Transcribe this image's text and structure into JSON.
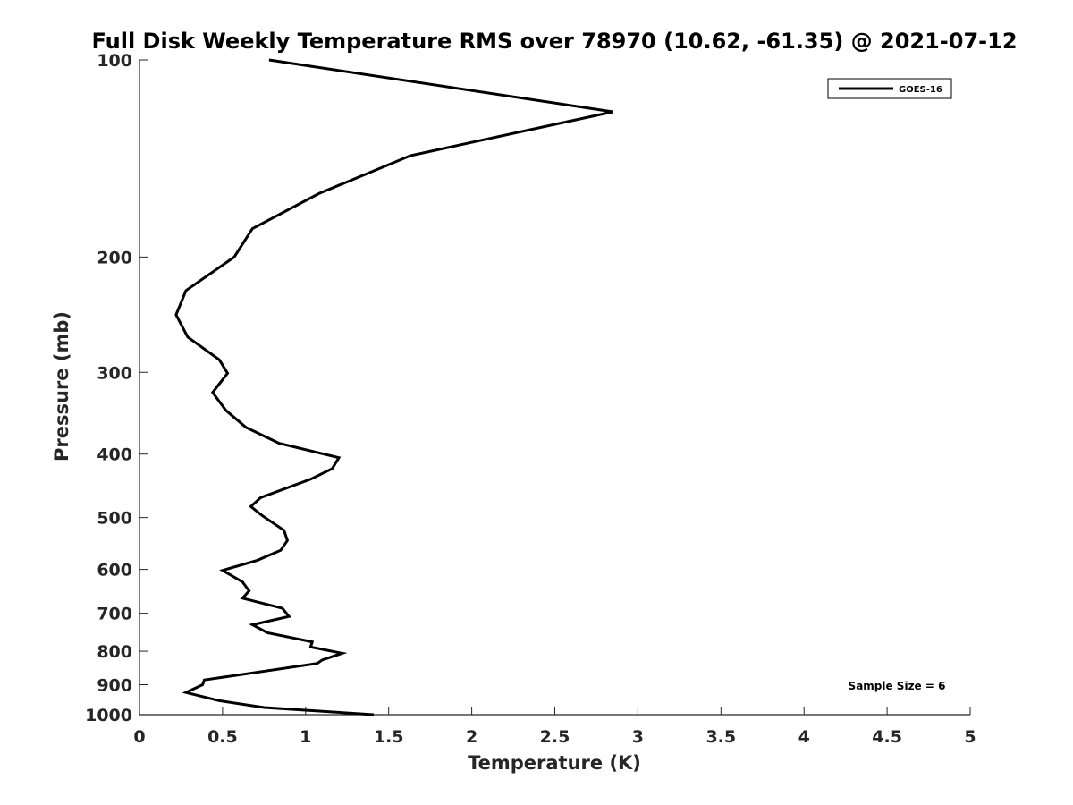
{
  "chart_data": {
    "type": "line",
    "title": "Full Disk Weekly Temperature RMS over 78970 (10.62, -61.35) @ 2021-07-12",
    "xlabel": "Temperature (K)",
    "ylabel": "Pressure (mb)",
    "xlim": [
      0,
      5
    ],
    "ylim": [
      100,
      1000
    ],
    "y_scale": "log",
    "y_reversed": true,
    "grid": false,
    "legend_position": "top-right",
    "x_ticks": [
      0,
      0.5,
      1,
      1.5,
      2,
      2.5,
      3,
      3.5,
      4,
      4.5,
      5
    ],
    "x_tick_labels": [
      "0",
      "0.5",
      "1",
      "1.5",
      "2",
      "2.5",
      "3",
      "3.5",
      "4",
      "4.5",
      "5"
    ],
    "y_ticks": [
      100,
      200,
      300,
      400,
      500,
      600,
      700,
      800,
      900,
      1000
    ],
    "y_tick_labels": [
      "100",
      "200",
      "300",
      "400",
      "500",
      "600",
      "700",
      "800",
      "900",
      "1000"
    ],
    "series": [
      {
        "name": "GOES-16",
        "color": "#000000",
        "points": [
          [
            0.78,
            100
          ],
          [
            2.85,
            120
          ],
          [
            1.63,
            140
          ],
          [
            1.08,
            160
          ],
          [
            0.68,
            181
          ],
          [
            0.57,
            200
          ],
          [
            0.28,
            225
          ],
          [
            0.22,
            245
          ],
          [
            0.29,
            265
          ],
          [
            0.48,
            287
          ],
          [
            0.53,
            301
          ],
          [
            0.44,
            322
          ],
          [
            0.52,
            343
          ],
          [
            0.64,
            364
          ],
          [
            0.84,
            385
          ],
          [
            1.2,
            405
          ],
          [
            1.16,
            421
          ],
          [
            1.03,
            437
          ],
          [
            0.73,
            466
          ],
          [
            0.67,
            481
          ],
          [
            0.74,
            497
          ],
          [
            0.87,
            523
          ],
          [
            0.89,
            542
          ],
          [
            0.85,
            561
          ],
          [
            0.71,
            581
          ],
          [
            0.5,
            602
          ],
          [
            0.62,
            627
          ],
          [
            0.66,
            647
          ],
          [
            0.62,
            664
          ],
          [
            0.86,
            688
          ],
          [
            0.9,
            708
          ],
          [
            0.68,
            729
          ],
          [
            0.77,
            750
          ],
          [
            1.04,
            774
          ],
          [
            1.03,
            788
          ],
          [
            1.22,
            806
          ],
          [
            1.1,
            825
          ],
          [
            1.07,
            835
          ],
          [
            0.39,
            885
          ],
          [
            0.38,
            900
          ],
          [
            0.28,
            925
          ],
          [
            0.48,
            952
          ],
          [
            0.75,
            975
          ],
          [
            1.41,
            1000
          ]
        ]
      }
    ],
    "annotations": [
      "Sample Size = 6"
    ]
  }
}
